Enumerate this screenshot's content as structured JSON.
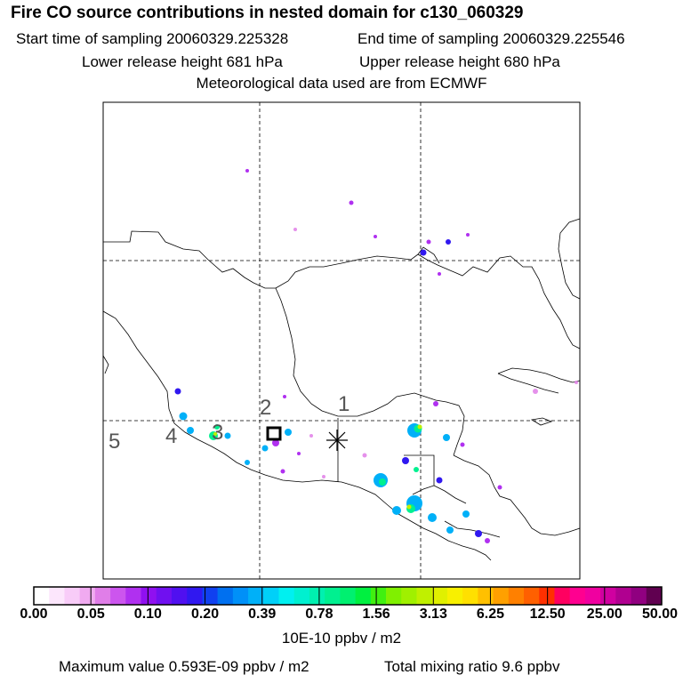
{
  "header": {
    "title": "Fire CO source contributions in nested domain for c130_060329",
    "start": "Start time of sampling 20060329.225328",
    "end": "End time of sampling 20060329.225546",
    "lower": "Lower release height  681 hPa",
    "upper": "Upper release height  680 hPa",
    "met": "Meteorological data used are from ECMWF"
  },
  "map": {
    "markers": [
      {
        "label": "1"
      },
      {
        "label": "2"
      },
      {
        "label": "3"
      },
      {
        "label": "4"
      },
      {
        "label": "5"
      }
    ]
  },
  "legend": {
    "ticks": [
      "0.00",
      "0.05",
      "0.10",
      "0.20",
      "0.39",
      "0.78",
      "1.56",
      "3.13",
      "6.25",
      "12.50",
      "25.00",
      "50.00"
    ],
    "units": "10E-10 ppbv / m2",
    "colors": [
      "#ffffff",
      "#fce6fc",
      "#f8ccf8",
      "#f0aaf0",
      "#e07ee8",
      "#cc55ee",
      "#b030f0",
      "#9010f0",
      "#7010f0",
      "#5010f0",
      "#3018f0",
      "#1040f0",
      "#0070f0",
      "#0090f8",
      "#00b0f8",
      "#00d0f8",
      "#00f0f0",
      "#00f0d0",
      "#00f0b0",
      "#00f090",
      "#00f070",
      "#00f040",
      "#40f010",
      "#80f000",
      "#a0f000",
      "#c0f000",
      "#e0f000",
      "#f8f000",
      "#ffe000",
      "#ffc000",
      "#ffa000",
      "#ff8000",
      "#ff6000",
      "#ff3000",
      "#ff0060",
      "#ff0090",
      "#f000a0",
      "#d000a0",
      "#b00090",
      "#900080",
      "#600050"
    ]
  },
  "footer": {
    "max": "Maximum value  0.593E-09 ppbv / m2",
    "total": "Total mixing ratio        9.6 ppbv"
  }
}
